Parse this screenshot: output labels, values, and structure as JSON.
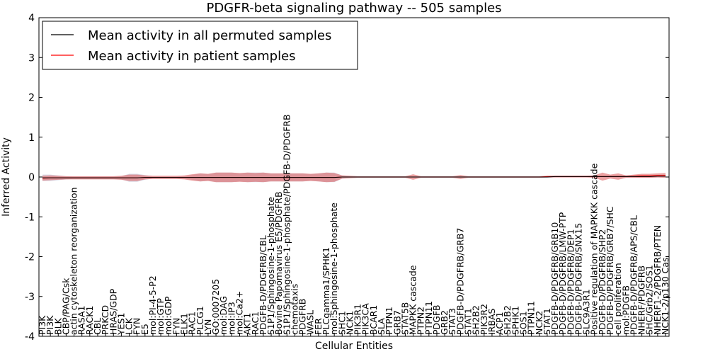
{
  "chart_data": {
    "type": "line",
    "title": "PDGFR-beta signaling pathway -- 505 samples",
    "xlabel": "Cellular Entities",
    "ylabel": "Inferred Activity",
    "ylim": [
      -4,
      4
    ],
    "yticks": [
      "-4",
      "-3",
      "-2",
      "-1",
      "0",
      "1",
      "2",
      "3",
      "4"
    ],
    "grid": false,
    "legend_position": "top-left",
    "colors": {
      "permuted_line": "#000000",
      "patient_line": "#ff0000",
      "patient_band": "#e06666",
      "permuted_band": "#c8c8d8"
    },
    "categories": [
      "PI3K",
      "PI3K",
      "BLK",
      "CBP/PAG/Csk",
      "actin cytoskeleton reorganization",
      "RASA1",
      "RACK1",
      "CBL",
      "PRKCD",
      "HRAS/GDP",
      "YES1",
      "LCK",
      "FYN",
      "E5",
      "mol:PI-4-5-P2",
      "mol:GTP",
      "mol:GDP",
      "FYN",
      "ELK1",
      "RAC1",
      "PLCG1",
      "LYN",
      "GO:0007205",
      "mol:DAG",
      "mol:IP3",
      "mol:Ca2+",
      "AKT1",
      "RAC1",
      "PDGFB-D/PDGFRB/CBL",
      "S1P1/Sphingosine-1-phosphate",
      "Bovine Papomavirus E5/PDGFRB",
      "S1P1/Sphingosine-1-phosphate/PDGFB-D/PDGFRB",
      "chemotaxis",
      "PDGFRB",
      "WASL",
      "FER",
      "PLCgamma1/SPHK1",
      "mol:Sphingosine-1-phosphate",
      "SHC1",
      "NCK1",
      "PIK3R1",
      "PIK3CA",
      "BCAR1",
      "SLA",
      "PTPN1",
      "GRB7",
      "STAT5B",
      "MAPKK cascade",
      "PTPN2",
      "PTPN11",
      "PDGFB",
      "GRB2",
      "STAT3",
      "PDGFB-D/PDGFRB/GRB7",
      "STAT1",
      "SH2B2",
      "PIK3R2",
      "IRBAS",
      "ACP1",
      "SH2B2",
      "SPHK1",
      "SOS1",
      "PTPN11",
      "NCK2",
      "STAT1",
      "PDGFB-D/PDGFRB/GRB10",
      "PDGFB-D/PDGFRB/LMW-PTP",
      "PDGFB-D/PDGFRB/DEP1",
      "PDGFB-D/PDGFRB/SNX15",
      "SLC9A3R1",
      "Positive regulation of MAPKKK cascade",
      "PDGFB-D/PDGFRB/SHP2",
      "PDGFB-D/PDGFRB/GRB7/SHC",
      "cell proliferation",
      "mol:PDGFB",
      "PDGFB-D/PDGFRB/APS/CBL",
      "NHERF/PDGFRB",
      "SHC/Grb2/SOS1",
      "NHERF1-2/PDGFRB/PTEN",
      "NCK1-2/p130 Cas"
    ],
    "visible_tick_labels": [
      "PI3K",
      "PI3K",
      "BLK",
      "CBP/PAG/Csk",
      "actin cytoskeleton reorganization",
      "RASA1",
      "RACK1",
      "CBL",
      "PRKCD",
      "HRAS/GDP",
      "YES1",
      "LCK",
      "FYN",
      "E5",
      "mol:PI-4-5-P2",
      "mol:GTP",
      "mol:GDP",
      "FYN",
      "ELK1",
      "RAC1",
      "PLCG1",
      "LYN",
      "GO:0007205",
      "mol:DAG",
      "mol:IP3",
      "mol:Ca2+",
      "AKT1",
      "RAC1",
      "PDGFB-D/PDGFRB/CBL",
      "S1P1/Sphingosine-1-phosphate",
      "Bovine Papomavirus E5/PDGFRB",
      "S1P1/Sphingosine-1-phosphate/PDGFB-D/PDGFRB",
      "chemotaxis",
      "PDGFRB",
      "WASL",
      "FER",
      "PLCgamma1/SPHK1",
      "mol:Sphingosine-1-phosphate",
      "SHC1",
      "NCK1",
      "PIK3R1",
      "PIK3CA",
      "BCAR1",
      "SLA",
      "PTPN1",
      "GRB7",
      "STAT5B",
      "MAPKK cascade",
      "PTPN2",
      "PTPN11",
      "PDGFB",
      "GRB2",
      "STAT3",
      "PDGFB-D/PDGFRB/GRB7",
      "STAT1",
      "SH2B2",
      "PIK3R2",
      "IRBAS",
      "ACP1",
      "SH2B2",
      "SPHK1",
      "SOS1",
      "PTPN11",
      "NCK2",
      "STAT1",
      "PDGFB-D/PDGFRB/GRB10",
      "PDGFB-D/PDGFRB/LMW-PTP",
      "PDGFB-D/PDGFRB/DEP1",
      "PDGFB-D/PDGFRB/SNX15",
      "SLC9A3R1",
      "Positive regulation of MAPKKK cascade",
      "PDGFB-D/PDGFRB/SHP2",
      "PDGFB-D/PDGFRB/GRB7/SHC",
      "cell proliferation",
      "mol:PDGFB",
      "PDGFB-D/PDGFRB/APS/CBL",
      "NHERF/PDGFRB",
      "SHC/Grb2/SOS1",
      "NHERF1-2/PDGFRB/PTEN",
      "NCK1-2/p130 Cas"
    ],
    "series": [
      {
        "name": "Mean activity in all permuted samples",
        "color": "#000000",
        "values": [
          -0.02,
          -0.02,
          -0.02,
          -0.02,
          -0.02,
          -0.02,
          -0.02,
          -0.02,
          -0.02,
          -0.02,
          -0.02,
          -0.02,
          -0.02,
          -0.01,
          -0.01,
          -0.01,
          -0.01,
          -0.01,
          -0.01,
          -0.01,
          -0.01,
          -0.01,
          -0.01,
          -0.01,
          -0.01,
          -0.01,
          -0.01,
          -0.01,
          -0.01,
          -0.01,
          -0.01,
          -0.01,
          -0.01,
          -0.01,
          -0.01,
          -0.01,
          -0.01,
          -0.01,
          0.0,
          0.0,
          0.0,
          0.0,
          0.0,
          0.0,
          0.0,
          0.0,
          0.0,
          0.0,
          0.0,
          0.0,
          0.0,
          0.0,
          0.0,
          0.0,
          0.0,
          0.0,
          0.0,
          0.0,
          0.0,
          0.0,
          0.0,
          0.0,
          0.0,
          0.0,
          0.0,
          0.01,
          0.01,
          0.01,
          0.01,
          0.01,
          0.01,
          0.01,
          0.01,
          0.01,
          0.01,
          0.01,
          0.01,
          0.01,
          0.02,
          0.02
        ],
        "spread": [
          0.08,
          0.08,
          0.06,
          0.04,
          0.03,
          0.03,
          0.03,
          0.03,
          0.03,
          0.03,
          0.04,
          0.1,
          0.1,
          0.06,
          0.03,
          0.03,
          0.03,
          0.03,
          0.03,
          0.06,
          0.1,
          0.08,
          0.12,
          0.12,
          0.12,
          0.1,
          0.12,
          0.12,
          0.12,
          0.1,
          0.1,
          0.1,
          0.1,
          0.1,
          0.08,
          0.1,
          0.12,
          0.12,
          0.04,
          0.02,
          0.02,
          0.02,
          0.02,
          0.02,
          0.02,
          0.02,
          0.02,
          0.02,
          0.02,
          0.02,
          0.02,
          0.02,
          0.02,
          0.02,
          0.02,
          0.02,
          0.02,
          0.02,
          0.02,
          0.02,
          0.02,
          0.02,
          0.02,
          0.02,
          0.02,
          0.02,
          0.02,
          0.02,
          0.02,
          0.02,
          0.02,
          0.02,
          0.03,
          0.03,
          0.03,
          0.03,
          0.03,
          0.03,
          0.03,
          0.03
        ]
      },
      {
        "name": "Mean activity in patient samples",
        "color": "#ff0000",
        "values": [
          -0.03,
          -0.02,
          -0.02,
          -0.02,
          -0.02,
          -0.02,
          -0.02,
          -0.02,
          -0.02,
          -0.02,
          -0.02,
          -0.02,
          -0.02,
          -0.01,
          -0.01,
          -0.01,
          -0.01,
          -0.01,
          -0.01,
          -0.01,
          -0.01,
          -0.01,
          -0.01,
          -0.01,
          -0.01,
          -0.01,
          -0.01,
          -0.01,
          -0.01,
          -0.01,
          -0.01,
          -0.01,
          -0.01,
          -0.01,
          -0.01,
          -0.01,
          -0.01,
          -0.01,
          0.0,
          0.0,
          0.0,
          0.0,
          0.0,
          0.0,
          0.0,
          0.0,
          0.0,
          0.0,
          0.0,
          0.0,
          0.0,
          0.0,
          0.0,
          0.0,
          0.0,
          0.0,
          0.0,
          0.0,
          0.0,
          0.0,
          0.0,
          0.0,
          0.0,
          0.0,
          0.01,
          0.01,
          0.01,
          0.01,
          0.01,
          0.01,
          0.01,
          0.01,
          0.01,
          0.01,
          0.01,
          0.02,
          0.03,
          0.03,
          0.04,
          0.04
        ],
        "spread": [
          0.06,
          0.06,
          0.05,
          0.04,
          0.04,
          0.04,
          0.04,
          0.04,
          0.04,
          0.04,
          0.05,
          0.08,
          0.08,
          0.05,
          0.04,
          0.04,
          0.04,
          0.04,
          0.05,
          0.08,
          0.1,
          0.09,
          0.12,
          0.12,
          0.12,
          0.11,
          0.12,
          0.11,
          0.12,
          0.1,
          0.1,
          0.1,
          0.1,
          0.1,
          0.09,
          0.1,
          0.12,
          0.11,
          0.04,
          0.03,
          0.02,
          0.02,
          0.02,
          0.02,
          0.02,
          0.02,
          0.02,
          0.07,
          0.02,
          0.02,
          0.02,
          0.02,
          0.02,
          0.05,
          0.02,
          0.02,
          0.02,
          0.02,
          0.02,
          0.02,
          0.02,
          0.02,
          0.02,
          0.02,
          0.02,
          0.02,
          0.02,
          0.02,
          0.02,
          0.02,
          0.03,
          0.1,
          0.05,
          0.08,
          0.03,
          0.04,
          0.05,
          0.05,
          0.05,
          0.06
        ]
      }
    ]
  }
}
